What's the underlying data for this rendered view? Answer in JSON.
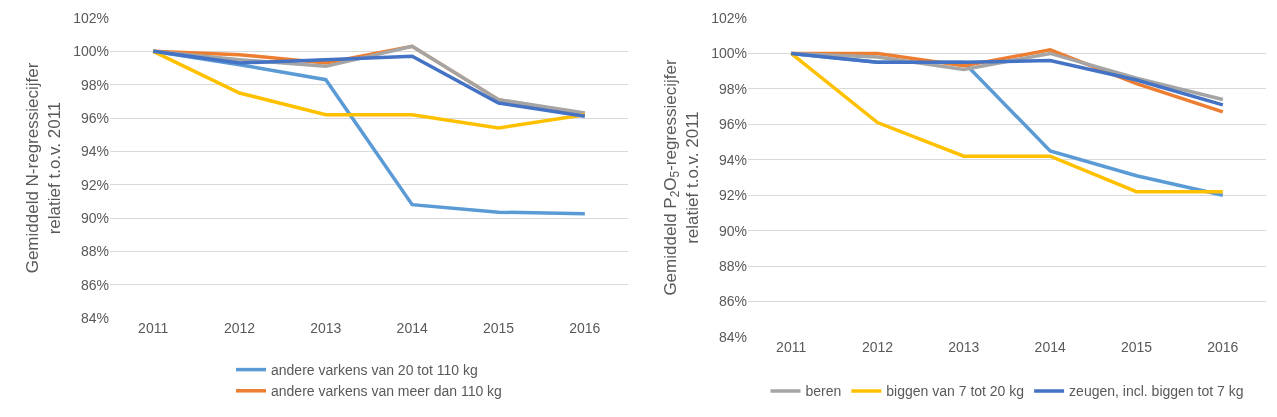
{
  "chart_data": [
    {
      "type": "line",
      "ylabel": "Gemiddeld N-regressiecijfer\nrelatief t.o.v. 2011",
      "categories": [
        "2011",
        "2012",
        "2013",
        "2014",
        "2015",
        "2016"
      ],
      "ylim": [
        84,
        102
      ],
      "yticks": [
        {
          "value": 84,
          "label": "84%"
        },
        {
          "value": 86,
          "label": "86%"
        },
        {
          "value": 88,
          "label": "88%"
        },
        {
          "value": 90,
          "label": "90%"
        },
        {
          "value": 92,
          "label": "92%"
        },
        {
          "value": 94,
          "label": "94%"
        },
        {
          "value": 96,
          "label": "96%"
        },
        {
          "value": 98,
          "label": "98%"
        },
        {
          "value": 100,
          "label": "100%"
        },
        {
          "value": 102,
          "label": "102%"
        }
      ],
      "grid": "y",
      "legend": "bottom",
      "marker": "none",
      "line_style": "solid",
      "series": [
        {
          "name": "andere varkens van 20 tot 110 kg",
          "color": "#5b9bd5",
          "values": [
            100,
            99.2,
            98.3,
            90.8,
            90.35,
            90.25
          ]
        },
        {
          "name": "andere varkens van meer dan 110 kg",
          "color": "#ed7d31",
          "values": [
            100,
            99.8,
            99.3,
            100.3,
            97.1,
            96.2
          ]
        },
        {
          "color": "#a5a5a5",
          "values": [
            100,
            99.5,
            99.1,
            100.3,
            97.1,
            96.3
          ]
        },
        {
          "color": "#ffc000",
          "values": [
            100,
            97.5,
            96.2,
            96.2,
            95.4,
            96.2
          ]
        },
        {
          "color": "#4472c4",
          "values": [
            100,
            99.3,
            99.5,
            99.7,
            96.9,
            96.1
          ]
        }
      ]
    },
    {
      "type": "line",
      "ylabel": "Gemiddeld P$_{2}$O$_{5}$-regressiecijfer\nrelatief t.o.v. 2011",
      "categories": [
        "2011",
        "2012",
        "2013",
        "2014",
        "2015",
        "2016"
      ],
      "ylim": [
        84,
        102
      ],
      "yticks": [
        {
          "value": 84,
          "label": "84%"
        },
        {
          "value": 86,
          "label": "86%"
        },
        {
          "value": 88,
          "label": "88%"
        },
        {
          "value": 90,
          "label": "90%"
        },
        {
          "value": 92,
          "label": "92%"
        },
        {
          "value": 94,
          "label": "94%"
        },
        {
          "value": 96,
          "label": "96%"
        },
        {
          "value": 98,
          "label": "98%"
        },
        {
          "value": 100,
          "label": "100%"
        },
        {
          "value": 102,
          "label": "102%"
        }
      ],
      "grid": "y",
      "legend": "bottom",
      "marker": "none",
      "line_style": "solid",
      "series": [
        {
          "color": "#5b9bd5",
          "values": [
            100,
            99.5,
            99.5,
            94.5,
            93.1,
            92.0
          ]
        },
        {
          "color": "#ed7d31",
          "values": [
            100,
            100,
            99.3,
            100.2,
            98.3,
            96.7
          ]
        },
        {
          "name": "beren",
          "color": "#a5a5a5",
          "values": [
            100,
            99.8,
            99.1,
            100.0,
            98.6,
            97.4
          ]
        },
        {
          "name": "biggen van 7 tot 20 kg",
          "color": "#ffc000",
          "values": [
            100,
            96.1,
            94.2,
            94.2,
            92.2,
            92.2
          ]
        },
        {
          "name": "zeugen, incl. biggen tot 7 kg",
          "color": "#4472c4",
          "values": [
            100,
            99.5,
            99.5,
            99.6,
            98.5,
            97.1
          ]
        }
      ]
    }
  ]
}
